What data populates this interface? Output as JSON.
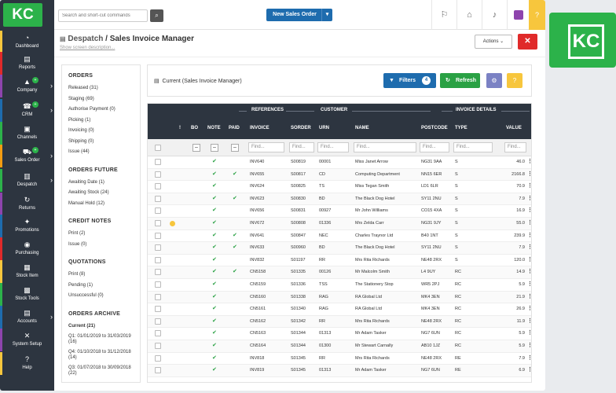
{
  "brand": {
    "logo": "KC"
  },
  "colors": {
    "brand_green": "#2cb24a",
    "primary_blue": "#1e6cae",
    "danger_red": "#e02a2a",
    "warning_yellow": "#f7c63d",
    "sidebar_bg": "#2d3540"
  },
  "sidebar": {
    "items": [
      {
        "label": "Dashboard",
        "icon": "dashboard-icon",
        "glyph": "◔"
      },
      {
        "label": "Reports",
        "icon": "reports-icon",
        "glyph": "▤"
      },
      {
        "label": "Company",
        "icon": "company-icon",
        "glyph": "▲"
      },
      {
        "label": "CRM",
        "icon": "crm-icon",
        "glyph": "☎"
      },
      {
        "label": "Channels",
        "icon": "channels-icon",
        "glyph": "▣"
      },
      {
        "label": "Sales Order",
        "icon": "cart-icon",
        "glyph": "⛟"
      },
      {
        "label": "Despatch",
        "icon": "despatch-icon",
        "glyph": "▥"
      },
      {
        "label": "Returns",
        "icon": "returns-icon",
        "glyph": "↻"
      },
      {
        "label": "Promotions",
        "icon": "promotions-icon",
        "glyph": "✦"
      },
      {
        "label": "Purchasing",
        "icon": "purchasing-icon",
        "glyph": "◉"
      },
      {
        "label": "Stock Item",
        "icon": "stock-item-icon",
        "glyph": "▦"
      },
      {
        "label": "Stock Tools",
        "icon": "stock-tools-icon",
        "glyph": "▩"
      },
      {
        "label": "Accounts",
        "icon": "accounts-icon",
        "glyph": "▤"
      },
      {
        "label": "System Setup",
        "icon": "wrench-icon",
        "glyph": "✕"
      },
      {
        "label": "Help",
        "icon": "help-icon",
        "glyph": "?"
      }
    ]
  },
  "topbar": {
    "search_placeholder": "Search and short-cut commands",
    "new_order_label": "New Sales Order",
    "help_glyph": "?"
  },
  "page": {
    "crumb": "Despatch",
    "title": "Sales Invoice Manager",
    "description_link": "Show screen description...",
    "actions_label": "Actions",
    "close_glyph": "✕"
  },
  "left_panel": {
    "sections": [
      {
        "heading": "ORDERS",
        "items": [
          "Released (31)",
          "Staging (69)",
          "Authorise Payment (0)",
          "Picking (1)",
          "Invoicing (0)",
          "Shipping (0)",
          "Issue (44)"
        ]
      },
      {
        "heading": "ORDERS FUTURE",
        "items": [
          "Awaiting Date (1)",
          "Awaiting Stock (24)",
          "Manual Hold (12)"
        ]
      },
      {
        "heading": "CREDIT NOTES",
        "items": [
          "Print (2)",
          "Issue (0)"
        ]
      },
      {
        "heading": "QUOTATIONS",
        "items": [
          "Print (8)",
          "Pending (1)",
          "Unsuccessful (0)"
        ]
      },
      {
        "heading": "ORDERS ARCHIVE",
        "items": [
          "Current (21)",
          "Q1: 01/01/2019 to 31/03/2019 (16)",
          "Q4: 01/10/2018 to 31/12/2018 (14)",
          "Q3: 01/07/2018 to 30/09/2018 (22)"
        ]
      }
    ]
  },
  "main": {
    "card_title": "Current (Sales Invoice Manager)",
    "filters_label": "Filters",
    "filters_count": "4",
    "refresh_label": "Refresh"
  },
  "table": {
    "group_headers": {
      "references": "REFERENCES",
      "customer": "CUSTOMER",
      "invoice_details": "INVOICE DETAILS"
    },
    "columns": {
      "flag": "!",
      "bo": "BO",
      "note": "NOTE",
      "paid": "PAID",
      "invoice": "INVOICE",
      "sorder": "SORDER",
      "urn": "URN",
      "name": "NAME",
      "postcode": "POSTCODE",
      "type": "TYPE",
      "value": "VALUE"
    },
    "find_placeholder": "Find...",
    "rows": [
      {
        "flag": false,
        "note": true,
        "paid": false,
        "invoice": "INV640",
        "sorder": "S00819",
        "urn": "00001",
        "name": "Miss Janet Arrow",
        "postcode": "NG31 9AA",
        "type": "S",
        "value": "46.0"
      },
      {
        "flag": false,
        "note": true,
        "paid": true,
        "invoice": "INV655",
        "sorder": "S00817",
        "urn": "CD",
        "name": "Computing Department",
        "postcode": "NN15 6ER",
        "type": "S",
        "value": "2166.8"
      },
      {
        "flag": false,
        "note": true,
        "paid": false,
        "invoice": "INV624",
        "sorder": "S00825",
        "urn": "TS",
        "name": "Miss Tegan Smith",
        "postcode": "LD1 6LR",
        "type": "S",
        "value": "70.9"
      },
      {
        "flag": false,
        "note": true,
        "paid": true,
        "invoice": "INV623",
        "sorder": "S00830",
        "urn": "BD",
        "name": "The Black Dog Hotel",
        "postcode": "SY11 2NU",
        "type": "S",
        "value": "7.9"
      },
      {
        "flag": false,
        "note": true,
        "paid": false,
        "invoice": "INV656",
        "sorder": "S00831",
        "urn": "00927",
        "name": "Mr John Williams",
        "postcode": "CO15 4XA",
        "type": "S",
        "value": "16.9"
      },
      {
        "flag": true,
        "note": true,
        "paid": false,
        "invoice": "INV672",
        "sorder": "S00808",
        "urn": "01336",
        "name": "Mrs Zelda Carr",
        "postcode": "NG31 9JY",
        "type": "S",
        "value": "55.0"
      },
      {
        "flag": false,
        "note": true,
        "paid": true,
        "invoice": "INV641",
        "sorder": "S00847",
        "urn": "NEC",
        "name": "Charles Traynor Ltd",
        "postcode": "B40 1NT",
        "type": "S",
        "value": "239.9"
      },
      {
        "flag": false,
        "note": true,
        "paid": true,
        "invoice": "INV633",
        "sorder": "S00960",
        "urn": "BD",
        "name": "The Black Dog Hotel",
        "postcode": "SY11 2NU",
        "type": "S",
        "value": "7.9"
      },
      {
        "flag": false,
        "note": true,
        "paid": false,
        "invoice": "INV832",
        "sorder": "S01197",
        "urn": "RR",
        "name": "Mrs Rita Richards",
        "postcode": "NE48 2RX",
        "type": "S",
        "value": "120.0"
      },
      {
        "flag": false,
        "note": true,
        "paid": true,
        "invoice": "CN5158",
        "sorder": "S01335",
        "urn": "00126",
        "name": "Mr Malcolm Smith",
        "postcode": "L4 9UY",
        "type": "RC",
        "value": "14.9"
      },
      {
        "flag": false,
        "note": true,
        "paid": false,
        "invoice": "CN5159",
        "sorder": "S01336",
        "urn": "TSS",
        "name": "The Stationery Stop",
        "postcode": "WR5 2PJ",
        "type": "RC",
        "value": "5.9"
      },
      {
        "flag": false,
        "note": true,
        "paid": false,
        "invoice": "CN5160",
        "sorder": "S01338",
        "urn": "RAG",
        "name": "RA Global Ltd",
        "postcode": "MK4 3EN",
        "type": "RC",
        "value": "21.9"
      },
      {
        "flag": false,
        "note": true,
        "paid": false,
        "invoice": "CN5161",
        "sorder": "S01340",
        "urn": "RAG",
        "name": "RA Global Ltd",
        "postcode": "MK4 3EN",
        "type": "RC",
        "value": "26.9"
      },
      {
        "flag": false,
        "note": true,
        "paid": false,
        "invoice": "CN5162",
        "sorder": "S01342",
        "urn": "RR",
        "name": "Mrs Rita Richards",
        "postcode": "NE48 2RX",
        "type": "RC",
        "value": "11.9"
      },
      {
        "flag": false,
        "note": true,
        "paid": false,
        "invoice": "CN5163",
        "sorder": "S01344",
        "urn": "01313",
        "name": "Mr Adam Tasker",
        "postcode": "NG7 6UN",
        "type": "RC",
        "value": "5.9"
      },
      {
        "flag": false,
        "note": true,
        "paid": false,
        "invoice": "CN5164",
        "sorder": "S01344",
        "urn": "01300",
        "name": "Mr Stewart Carnally",
        "postcode": "AB10 1JZ",
        "type": "RC",
        "value": "5.9"
      },
      {
        "flag": false,
        "note": true,
        "paid": false,
        "invoice": "INV818",
        "sorder": "S01345",
        "urn": "RR",
        "name": "Mrs Rita Richards",
        "postcode": "NE48 2RX",
        "type": "RE",
        "value": "7.9"
      },
      {
        "flag": false,
        "note": true,
        "paid": false,
        "invoice": "INV819",
        "sorder": "S01345",
        "urn": "01313",
        "name": "Mr Adam Tasker",
        "postcode": "NG7 6UN",
        "type": "RE",
        "value": "6.9"
      }
    ]
  }
}
